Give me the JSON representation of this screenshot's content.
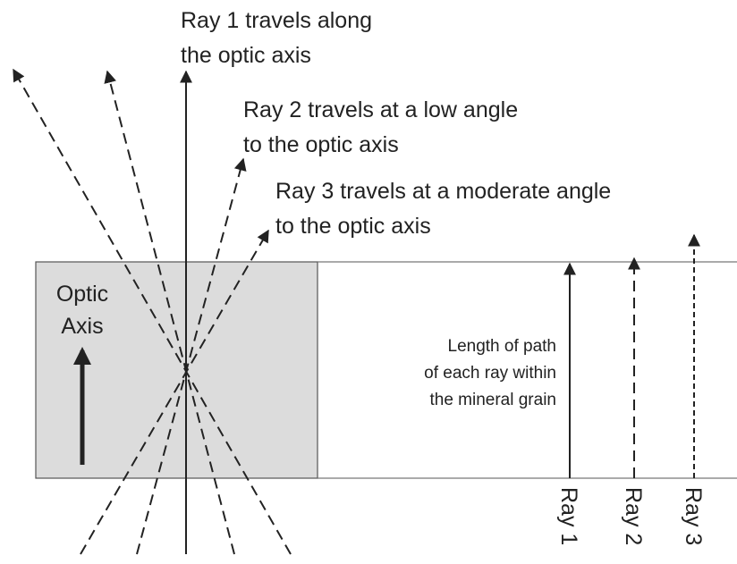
{
  "ray_labels": [
    {
      "lines": [
        "Ray 1 travels along",
        "the optic axis"
      ]
    },
    {
      "lines": [
        "Ray 2 travels at a low angle",
        "to the optic axis"
      ]
    },
    {
      "lines": [
        "Ray 3 travels at a moderate angle",
        "to the optic axis"
      ]
    }
  ],
  "optic_axis_label": {
    "lines": [
      "Optic",
      "Axis"
    ]
  },
  "path_note": {
    "lines": [
      "Length of path",
      "of each ray within",
      "the mineral grain"
    ]
  },
  "path_rays": [
    "Ray 1",
    "Ray 2",
    "Ray 3"
  ]
}
